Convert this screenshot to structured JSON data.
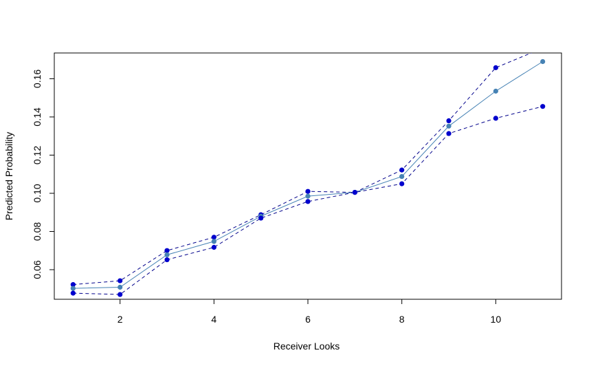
{
  "chart_data": {
    "type": "line",
    "title": "",
    "xlabel": "Receiver Looks",
    "ylabel": "Predicted Probability",
    "x": [
      1,
      2,
      3,
      4,
      5,
      6,
      7,
      8,
      9,
      10,
      11
    ],
    "xlim": [
      0.6,
      11.4
    ],
    "ylim": [
      0.0445,
      0.1735
    ],
    "xticks": [
      2,
      4,
      6,
      8,
      10
    ],
    "xtick_labels": [
      "2",
      "4",
      "6",
      "8",
      "10"
    ],
    "yticks": [
      0.06,
      0.08,
      0.1,
      0.12,
      0.14,
      0.16
    ],
    "ytick_labels": [
      "0.06",
      "0.08",
      "0.10",
      "0.12",
      "0.14",
      "0.16"
    ],
    "grid": false,
    "legend": "none",
    "series": [
      {
        "role": "upper",
        "style": "dashed",
        "color": "#00008b",
        "marker_color": "#0000cd",
        "values": [
          0.0522,
          0.0542,
          0.07,
          0.077,
          0.0888,
          0.101,
          0.1005,
          0.1122,
          0.138,
          0.1658,
          0.176
        ]
      },
      {
        "role": "estimate",
        "style": "solid",
        "color": "#4682b4",
        "marker_color": "#4682b4",
        "values": [
          0.0502,
          0.0508,
          0.0678,
          0.0748,
          0.088,
          0.0985,
          0.1005,
          0.1088,
          0.1352,
          0.1535,
          0.169
        ]
      },
      {
        "role": "lower",
        "style": "dashed",
        "color": "#00008b",
        "marker_color": "#0000cd",
        "values": [
          0.0477,
          0.047,
          0.0652,
          0.0717,
          0.087,
          0.0957,
          0.1005,
          0.105,
          0.1313,
          0.1393,
          0.1455
        ]
      }
    ]
  }
}
